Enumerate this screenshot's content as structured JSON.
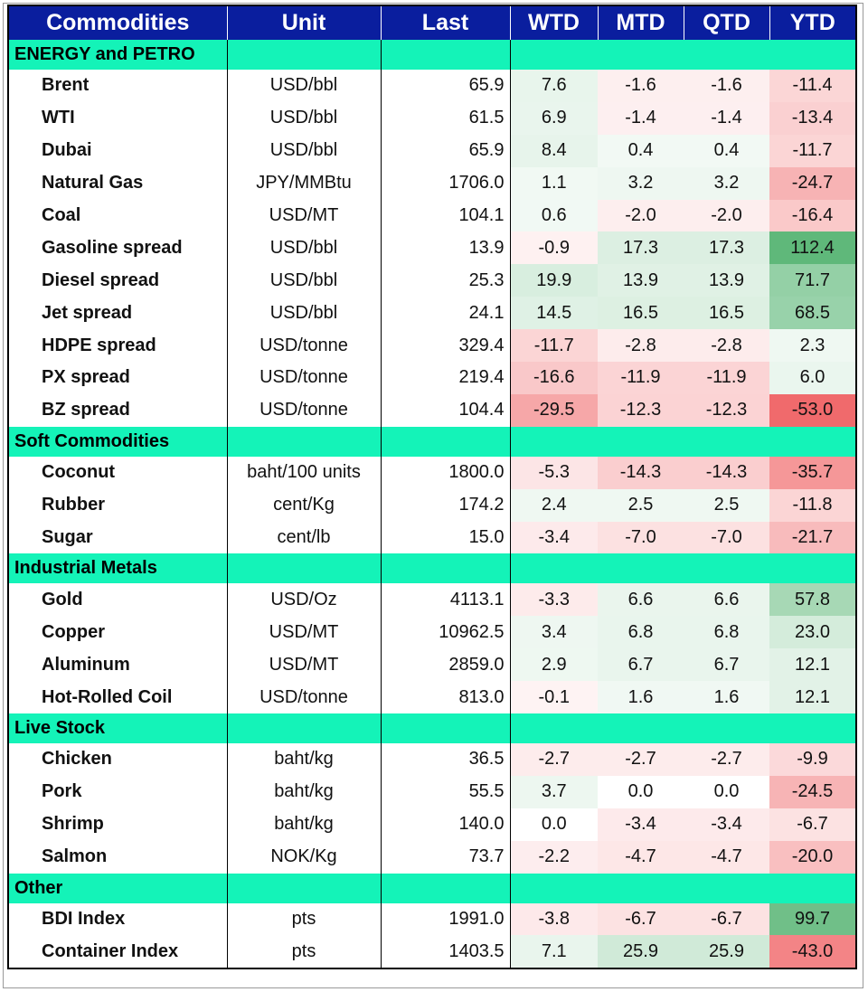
{
  "headers": [
    "Commodities",
    "Unit",
    "Last",
    "WTD",
    "MTD",
    "QTD",
    "YTD"
  ],
  "colors": {
    "header": "#0a1e9e",
    "section": "#14f3b8",
    "pos": "#5fb87a",
    "neg": "#f06a6c"
  },
  "sections": [
    {
      "name": "ENERGY and PETRO",
      "rows": [
        {
          "name": "Brent",
          "unit": "USD/bbl",
          "last": "65.9",
          "wtd": "7.6",
          "mtd": "-1.6",
          "qtd": "-1.6",
          "ytd": "-11.4"
        },
        {
          "name": "WTI",
          "unit": "USD/bbl",
          "last": "61.5",
          "wtd": "6.9",
          "mtd": "-1.4",
          "qtd": "-1.4",
          "ytd": "-13.4"
        },
        {
          "name": "Dubai",
          "unit": "USD/bbl",
          "last": "65.9",
          "wtd": "8.4",
          "mtd": "0.4",
          "qtd": "0.4",
          "ytd": "-11.7"
        },
        {
          "name": "Natural Gas",
          "unit": "JPY/MMBtu",
          "last": "1706.0",
          "wtd": "1.1",
          "mtd": "3.2",
          "qtd": "3.2",
          "ytd": "-24.7"
        },
        {
          "name": "Coal",
          "unit": "USD/MT",
          "last": "104.1",
          "wtd": "0.6",
          "mtd": "-2.0",
          "qtd": "-2.0",
          "ytd": "-16.4"
        },
        {
          "name": "Gasoline spread",
          "unit": "USD/bbl",
          "last": "13.9",
          "wtd": "-0.9",
          "mtd": "17.3",
          "qtd": "17.3",
          "ytd": "112.4"
        },
        {
          "name": "Diesel spread",
          "unit": "USD/bbl",
          "last": "25.3",
          "wtd": "19.9",
          "mtd": "13.9",
          "qtd": "13.9",
          "ytd": "71.7"
        },
        {
          "name": "Jet spread",
          "unit": "USD/bbl",
          "last": "24.1",
          "wtd": "14.5",
          "mtd": "16.5",
          "qtd": "16.5",
          "ytd": "68.5"
        },
        {
          "name": "HDPE spread",
          "unit": "USD/tonne",
          "last": "329.4",
          "wtd": "-11.7",
          "mtd": "-2.8",
          "qtd": "-2.8",
          "ytd": "2.3"
        },
        {
          "name": "PX spread",
          "unit": "USD/tonne",
          "last": "219.4",
          "wtd": "-16.6",
          "mtd": "-11.9",
          "qtd": "-11.9",
          "ytd": "6.0"
        },
        {
          "name": "BZ spread",
          "unit": "USD/tonne",
          "last": "104.4",
          "wtd": "-29.5",
          "mtd": "-12.3",
          "qtd": "-12.3",
          "ytd": "-53.0"
        }
      ]
    },
    {
      "name": "Soft Commodities",
      "rows": [
        {
          "name": "Coconut",
          "unit": "baht/100 units",
          "last": "1800.0",
          "wtd": "-5.3",
          "mtd": "-14.3",
          "qtd": "-14.3",
          "ytd": "-35.7"
        },
        {
          "name": "Rubber",
          "unit": "cent/Kg",
          "last": "174.2",
          "wtd": "2.4",
          "mtd": "2.5",
          "qtd": "2.5",
          "ytd": "-11.8"
        },
        {
          "name": "Sugar",
          "unit": "cent/lb",
          "last": "15.0",
          "wtd": "-3.4",
          "mtd": "-7.0",
          "qtd": "-7.0",
          "ytd": "-21.7"
        }
      ]
    },
    {
      "name": "Industrial Metals",
      "rows": [
        {
          "name": "Gold",
          "unit": "USD/Oz",
          "last": "4113.1",
          "wtd": "-3.3",
          "mtd": "6.6",
          "qtd": "6.6",
          "ytd": "57.8"
        },
        {
          "name": "Copper",
          "unit": "USD/MT",
          "last": "10962.5",
          "wtd": "3.4",
          "mtd": "6.8",
          "qtd": "6.8",
          "ytd": "23.0"
        },
        {
          "name": "Aluminum",
          "unit": "USD/MT",
          "last": "2859.0",
          "wtd": "2.9",
          "mtd": "6.7",
          "qtd": "6.7",
          "ytd": "12.1"
        },
        {
          "name": "Hot-Rolled Coil",
          "unit": "USD/tonne",
          "last": "813.0",
          "wtd": "-0.1",
          "mtd": "1.6",
          "qtd": "1.6",
          "ytd": "12.1"
        }
      ]
    },
    {
      "name": "Live Stock",
      "rows": [
        {
          "name": "Chicken",
          "unit": "baht/kg",
          "last": "36.5",
          "wtd": "-2.7",
          "mtd": "-2.7",
          "qtd": "-2.7",
          "ytd": "-9.9"
        },
        {
          "name": "Pork",
          "unit": "baht/kg",
          "last": "55.5",
          "wtd": "3.7",
          "mtd": "0.0",
          "qtd": "0.0",
          "ytd": "-24.5"
        },
        {
          "name": "Shrimp",
          "unit": "baht/kg",
          "last": "140.0",
          "wtd": "0.0",
          "mtd": "-3.4",
          "qtd": "-3.4",
          "ytd": "-6.7"
        },
        {
          "name": "Salmon",
          "unit": "NOK/Kg",
          "last": "73.7",
          "wtd": "-2.2",
          "mtd": "-4.7",
          "qtd": "-4.7",
          "ytd": "-20.0"
        }
      ]
    },
    {
      "name": "Other",
      "rows": [
        {
          "name": "BDI Index",
          "unit": "pts",
          "last": "1991.0",
          "wtd": "-3.8",
          "mtd": "-6.7",
          "qtd": "-6.7",
          "ytd": "99.7"
        },
        {
          "name": "Container Index",
          "unit": "pts",
          "last": "1403.5",
          "wtd": "7.1",
          "mtd": "25.9",
          "qtd": "25.9",
          "ytd": "-43.0"
        }
      ]
    }
  ]
}
